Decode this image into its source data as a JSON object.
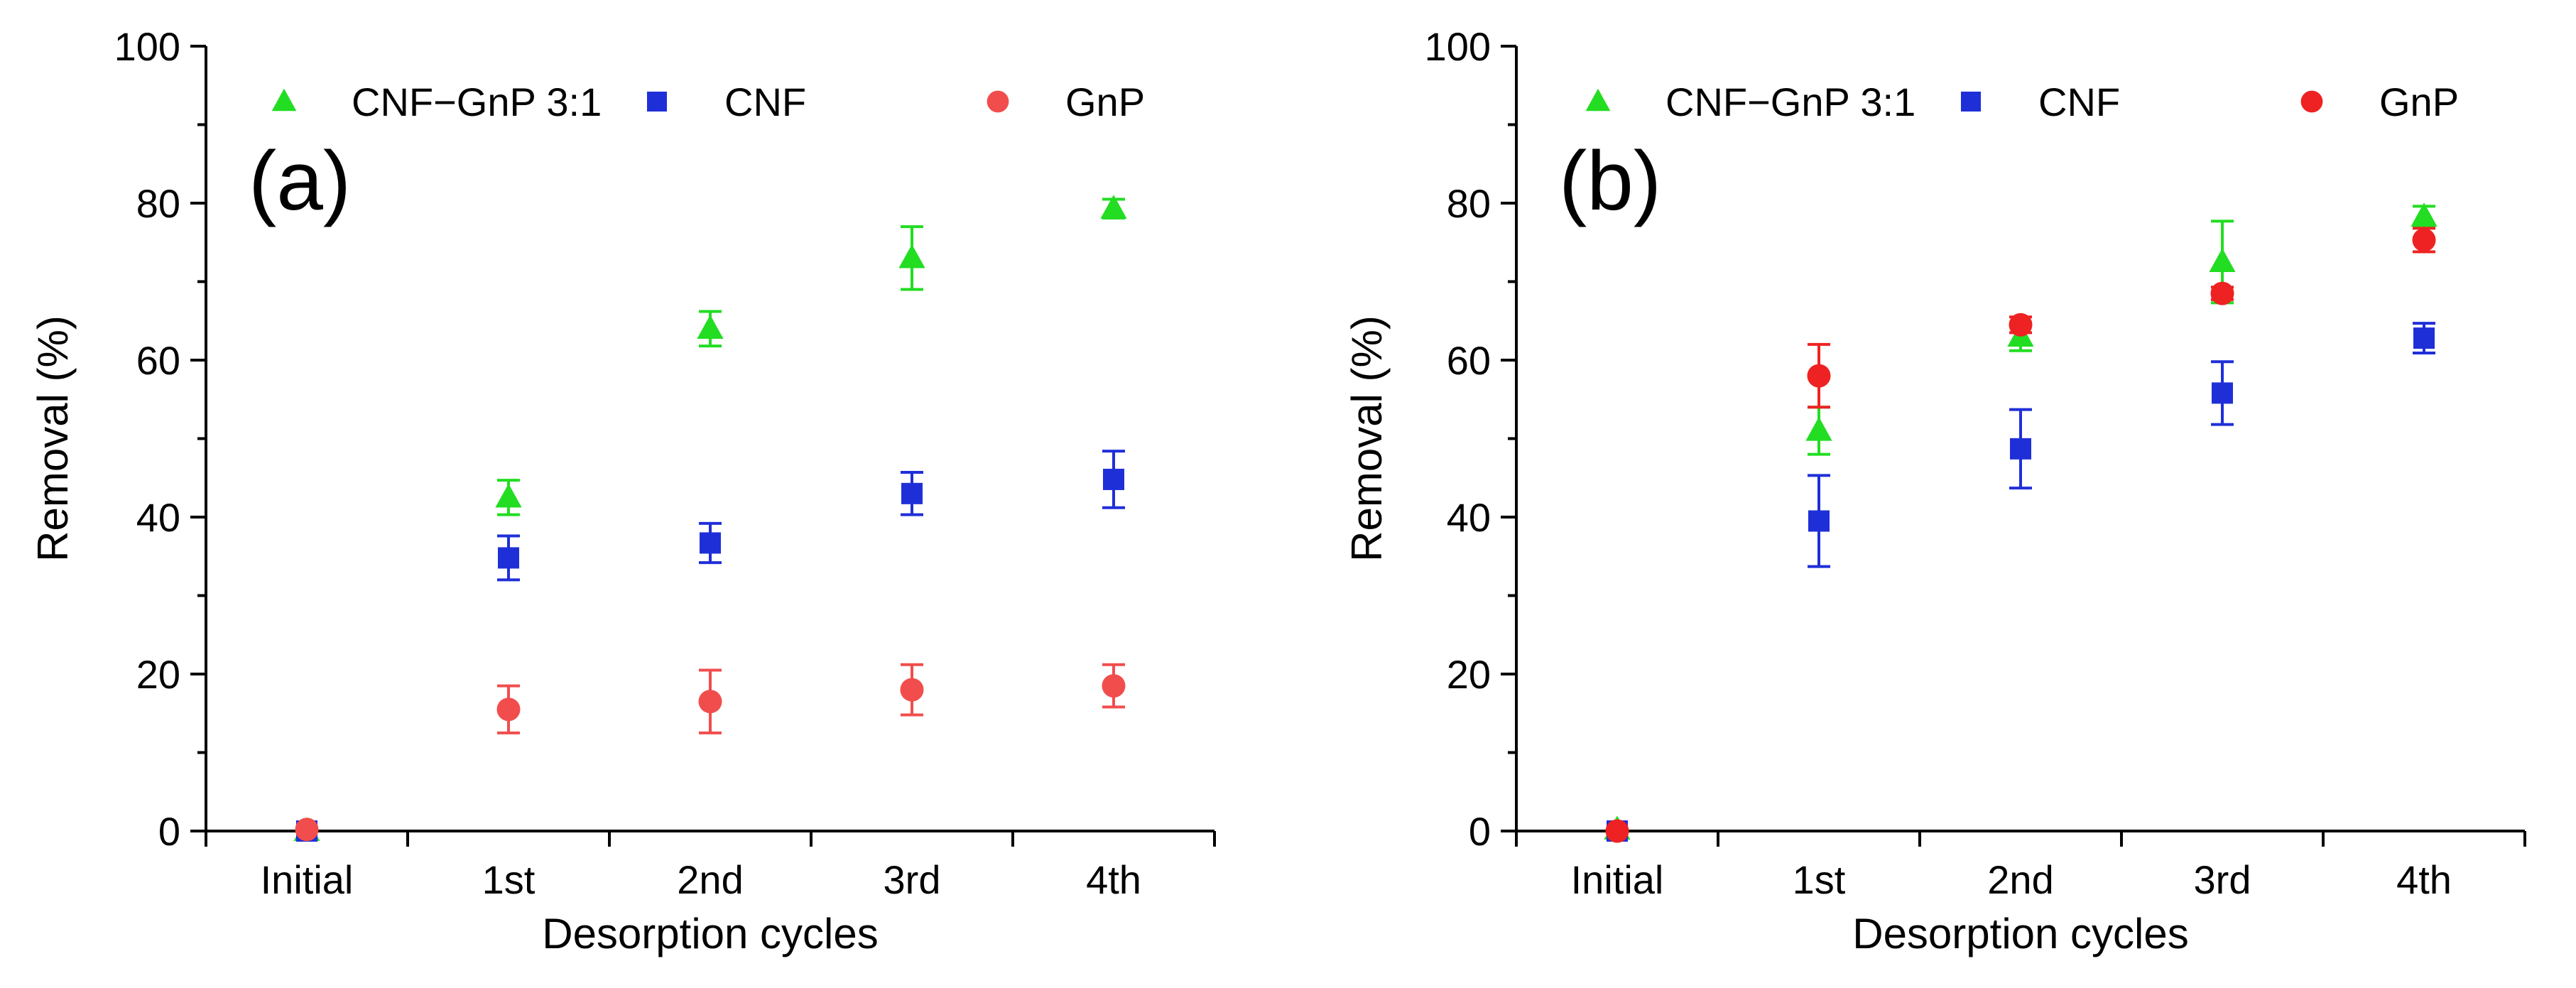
{
  "chart_data": [
    {
      "type": "scatter",
      "panel_label": "(a)",
      "xlabel": "Desorption cycles",
      "ylabel": "Removal (%)",
      "categories": [
        "Initial",
        "1st",
        "2nd",
        "3rd",
        "4th"
      ],
      "ylim": [
        0,
        100
      ],
      "yticks": [
        "0",
        "20",
        "40",
        "60",
        "80",
        "100"
      ],
      "legend_position": "top",
      "series": [
        {
          "name": "CNF−GnP 3:1",
          "marker": "triangle",
          "color": "#22dd22",
          "values": [
            0,
            42.5,
            64,
            73,
            79.3
          ],
          "errors": [
            0,
            2.2,
            2.2,
            4,
            1.2
          ]
        },
        {
          "name": "CNF",
          "marker": "square",
          "color": "#1f2fd8",
          "values": [
            0,
            34.8,
            36.7,
            43,
            44.8
          ],
          "errors": [
            0,
            2.8,
            2.5,
            2.7,
            3.6
          ]
        },
        {
          "name": "GnP",
          "marker": "circle",
          "color": "#f24d4d",
          "values": [
            0.2,
            15.5,
            16.5,
            18,
            18.5
          ],
          "errors": [
            0,
            3,
            4,
            3.2,
            2.7
          ]
        }
      ]
    },
    {
      "type": "scatter",
      "panel_label": "(b)",
      "xlabel": "Desorption cycles",
      "ylabel": "Removal (%)",
      "categories": [
        "Initial",
        "1st",
        "2nd",
        "3rd",
        "4th"
      ],
      "ylim": [
        0,
        100
      ],
      "yticks": [
        "0",
        "20",
        "40",
        "60",
        "80",
        "100"
      ],
      "legend_position": "top",
      "series": [
        {
          "name": "CNF−GnP 3:1",
          "marker": "triangle",
          "color": "#22dd22",
          "values": [
            0.2,
            51,
            63,
            72.5,
            78.3
          ],
          "errors": [
            0,
            3,
            1.8,
            5.2,
            1.3
          ]
        },
        {
          "name": "CNF",
          "marker": "square",
          "color": "#1f2fd8",
          "values": [
            0,
            39.5,
            48.7,
            55.8,
            62.8
          ],
          "errors": [
            0,
            5.8,
            5,
            4,
            1.9
          ]
        },
        {
          "name": "GnP",
          "marker": "circle",
          "color": "#ee2222",
          "values": [
            0,
            58,
            64.5,
            68.5,
            75.3
          ],
          "errors": [
            0,
            4,
            1,
            0.8,
            1.5
          ]
        }
      ]
    }
  ]
}
